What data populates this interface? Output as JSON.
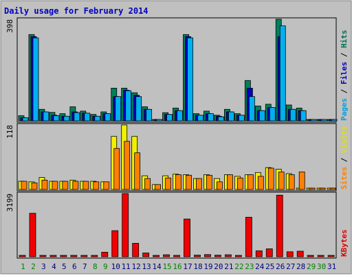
{
  "chart_data": {
    "type": "bar",
    "title": "Daily usage for February 2014",
    "categories": [
      "1",
      "2",
      "3",
      "4",
      "5",
      "6",
      "7",
      "8",
      "9",
      "10",
      "11",
      "12",
      "13",
      "14",
      "15",
      "16",
      "17",
      "18",
      "19",
      "20",
      "21",
      "22",
      "23",
      "24",
      "25",
      "26",
      "27",
      "28",
      "29",
      "30",
      "31"
    ],
    "weekend_days": [
      "1",
      "2",
      "8",
      "9",
      "15",
      "16",
      "22",
      "23",
      "29",
      "30"
    ],
    "panels": [
      {
        "name": "hits-files-pages",
        "ymax_label": "398",
        "ylim": [
          0,
          398
        ],
        "right_label": [
          {
            "text": "Pages",
            "color": "#00a0e0"
          },
          {
            "text": " / ",
            "color": "#000000"
          },
          {
            "text": "Files",
            "color": "#0000c0"
          },
          {
            "text": " / ",
            "color": "#000000"
          },
          {
            "text": "Hits",
            "color": "#007050"
          }
        ],
        "series": [
          {
            "name": "Hits",
            "color": "#00805a",
            "values": [
              20,
              338,
              45,
              33,
              28,
              55,
              38,
              25,
              35,
              128,
              128,
              110,
              55,
              5,
              32,
              50,
              338,
              28,
              38,
              22,
              45,
              28,
              158,
              58,
              65,
              398,
              62,
              50,
              0,
              0,
              0
            ]
          },
          {
            "name": "Files",
            "color": "#0000c0",
            "values": [
              12,
              330,
              35,
              22,
              18,
              35,
              30,
              18,
              28,
              95,
              120,
              100,
              45,
              3,
              25,
              40,
              330,
              22,
              28,
              18,
              35,
              22,
              128,
              40,
              52,
              330,
              45,
              40,
              0,
              0,
              0
            ]
          },
          {
            "name": "Pages",
            "color": "#00b0f0",
            "values": [
              12,
              325,
              35,
              20,
              18,
              32,
              30,
              18,
              28,
              95,
              118,
              95,
              45,
              3,
              25,
              40,
              325,
              22,
              28,
              16,
              35,
              22,
              95,
              40,
              52,
              372,
              45,
              40,
              0,
              0,
              0
            ]
          }
        ]
      },
      {
        "name": "visits-sites",
        "ymax_label": "118",
        "ylim": [
          0,
          118
        ],
        "right_label": [
          {
            "text": "Sites",
            "color": "#ff8000"
          },
          {
            "text": " / ",
            "color": "#000000"
          },
          {
            "text": "Visits",
            "color": "#e0e000"
          }
        ],
        "series": [
          {
            "name": "Visits",
            "color": "#f0f000",
            "values": [
              15,
              14,
              22,
              15,
              15,
              17,
              15,
              15,
              14,
              97,
              118,
              97,
              25,
              9,
              25,
              28,
              27,
              20,
              27,
              20,
              27,
              24,
              27,
              31,
              40,
              37,
              29,
              0,
              0,
              0,
              0
            ]
          },
          {
            "name": "Sites",
            "color": "#ff8000",
            "values": [
              15,
              12,
              17,
              15,
              15,
              15,
              15,
              14,
              14,
              75,
              88,
              67,
              20,
              9,
              21,
              27,
              26,
              20,
              26,
              14,
              27,
              21,
              27,
              24,
              39,
              32,
              27,
              32,
              0,
              0,
              0
            ]
          }
        ]
      },
      {
        "name": "kbytes",
        "ymax_label": "3199",
        "ylim": [
          0,
          3199
        ],
        "right_label": [
          {
            "text": "KBytes",
            "color": "#e00000"
          }
        ],
        "series": [
          {
            "name": "KBytes",
            "color": "#f00000",
            "values": [
              20,
              2200,
              40,
              40,
              60,
              30,
              30,
              30,
              230,
              1320,
              3199,
              680,
              190,
              20,
              100,
              60,
              1910,
              80,
              110,
              80,
              100,
              50,
              2000,
              300,
              400,
              3120,
              250,
              280,
              0,
              0,
              0
            ]
          }
        ]
      }
    ],
    "colors": {
      "outer_bg": "#c0c0c0",
      "panel_bg": "#c0c0c0",
      "title_color": "#0000c0",
      "weekday_label": "#000080",
      "weekend_label": "#008000"
    }
  }
}
